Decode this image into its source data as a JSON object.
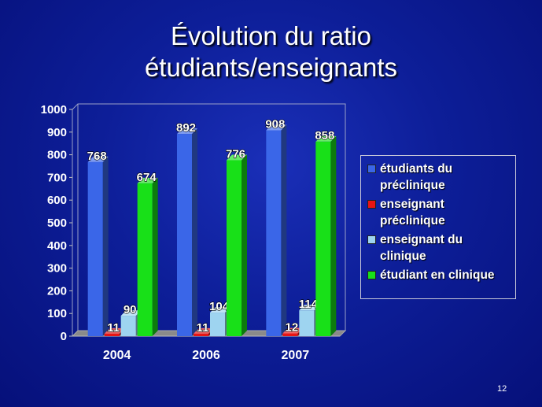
{
  "slide": {
    "title_line1": "Évolution du ratio",
    "title_line2": "étudiants/enseignants",
    "page_number": "12"
  },
  "chart_data": {
    "type": "bar",
    "categories": [
      "2004",
      "2006",
      "2007"
    ],
    "ylim": [
      0,
      1000
    ],
    "yticks": [
      0,
      100,
      200,
      300,
      400,
      500,
      600,
      700,
      800,
      900,
      1000
    ],
    "series": [
      {
        "name": "étudiants du préclinique",
        "values": [
          768,
          892,
          908
        ],
        "color": "#3a66e8"
      },
      {
        "name": "enseignant préclinique",
        "values": [
          11,
          11,
          12
        ],
        "color": "#e81515"
      },
      {
        "name": "enseignant du clinique",
        "values": [
          90,
          104,
          114
        ],
        "color": "#9ed4f0"
      },
      {
        "name": "étudiant en clinique",
        "values": [
          674,
          776,
          858
        ],
        "color": "#18e018"
      }
    ],
    "legend_position": "right",
    "grid": false,
    "style": "3d"
  }
}
